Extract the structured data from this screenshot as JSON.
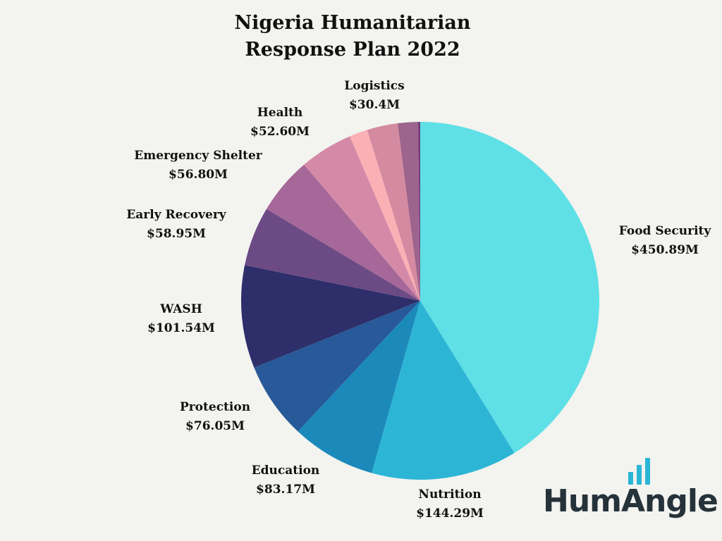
{
  "title": [
    "Nigeria Humanitarian",
    "Response Plan 2022"
  ],
  "chart_data": {
    "type": "pie",
    "title": "Nigeria Humanitarian Response Plan 2022",
    "slices": [
      {
        "name": "Food Security",
        "value": 450.89,
        "label": "$450.89M",
        "color": "#5ee0e6"
      },
      {
        "name": "Nutrition",
        "value": 144.29,
        "label": "$144.29M",
        "color": "#2db5d6"
      },
      {
        "name": "Education",
        "value": 83.17,
        "label": "$83.17M",
        "color": "#1b8abb"
      },
      {
        "name": "Protection",
        "value": 76.05,
        "label": "$76.05M",
        "color": "#285998"
      },
      {
        "name": "WASH",
        "value": 101.54,
        "label": "$101.54M",
        "color": "#2d2e6a"
      },
      {
        "name": "Early Recovery",
        "value": 58.95,
        "label": "$58.95M",
        "color": "#6c4a84"
      },
      {
        "name": "Emergency Shelter",
        "value": 56.8,
        "label": "$56.80M",
        "color": "#a56899"
      },
      {
        "name": "Health",
        "value": 52.6,
        "label": "$52.60M",
        "color": "#d48aa7"
      },
      {
        "name": "",
        "value": 18.0,
        "label": "",
        "color": "#fbb0b5"
      },
      {
        "name": "Logistics",
        "value": 30.4,
        "label": "$30.4M",
        "color": "#d48aa0"
      },
      {
        "name": "",
        "value": 20.0,
        "label": "",
        "color": "#9c648e"
      },
      {
        "name": "",
        "value": 2.0,
        "label": "",
        "color": "#6f3a78"
      }
    ]
  },
  "logo": {
    "text": "HumAngle"
  }
}
